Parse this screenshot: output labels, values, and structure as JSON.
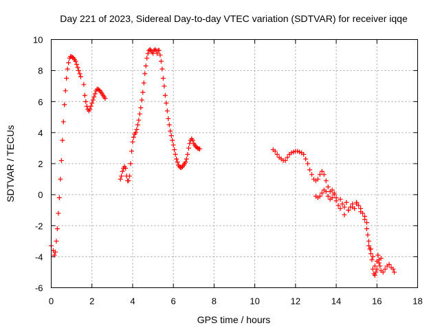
{
  "chart_data": {
    "type": "scatter",
    "title": "Day 221 of 2023, Sidereal Day-to-day VTEC variation (SDTVAR) for receiver iqqe",
    "xlabel": "GPS time / hours",
    "ylabel": "SDTVAR / TECUs",
    "xlim": [
      0,
      18
    ],
    "ylim": [
      -6,
      10
    ],
    "xticks": [
      "0",
      "2",
      "4",
      "6",
      "8",
      "10",
      "12",
      "14",
      "16",
      "18"
    ],
    "yticks": [
      "-6",
      "-4",
      "-2",
      "0",
      "2",
      "4",
      "6",
      "8",
      "10"
    ],
    "grid": true,
    "marker": "plus",
    "color": "#ff0000",
    "series": [
      {
        "name": "SDTVAR",
        "points": [
          [
            0.0,
            -3.3
          ],
          [
            0.1,
            -3.6
          ],
          [
            0.15,
            -3.9
          ],
          [
            0.2,
            -3.7
          ],
          [
            0.25,
            -3.0
          ],
          [
            0.3,
            -2.2
          ],
          [
            0.35,
            -1.2
          ],
          [
            0.4,
            -0.2
          ],
          [
            0.45,
            1.0
          ],
          [
            0.5,
            2.2
          ],
          [
            0.55,
            3.5
          ],
          [
            0.6,
            4.7
          ],
          [
            0.65,
            5.8
          ],
          [
            0.7,
            6.7
          ],
          [
            0.75,
            7.5
          ],
          [
            0.8,
            8.1
          ],
          [
            0.85,
            8.5
          ],
          [
            0.9,
            8.8
          ],
          [
            0.95,
            8.9
          ],
          [
            1.0,
            8.9
          ],
          [
            1.05,
            8.85
          ],
          [
            1.1,
            8.8
          ],
          [
            1.15,
            8.7
          ],
          [
            1.2,
            8.6
          ],
          [
            1.25,
            8.4
          ],
          [
            1.3,
            8.2
          ],
          [
            1.35,
            8.0
          ],
          [
            1.4,
            7.8
          ],
          [
            1.45,
            7.6
          ],
          [
            1.6,
            7.1
          ],
          [
            1.65,
            6.4
          ],
          [
            1.7,
            6.0
          ],
          [
            1.75,
            5.7
          ],
          [
            1.8,
            5.5
          ],
          [
            1.85,
            5.4
          ],
          [
            1.9,
            5.5
          ],
          [
            1.95,
            5.7
          ],
          [
            2.0,
            5.9
          ],
          [
            2.05,
            6.1
          ],
          [
            2.1,
            6.3
          ],
          [
            2.15,
            6.5
          ],
          [
            2.2,
            6.7
          ],
          [
            2.25,
            6.8
          ],
          [
            2.3,
            6.8
          ],
          [
            2.35,
            6.75
          ],
          [
            2.4,
            6.7
          ],
          [
            2.45,
            6.6
          ],
          [
            2.5,
            6.5
          ],
          [
            2.55,
            6.4
          ],
          [
            2.6,
            6.3
          ],
          [
            2.65,
            6.2
          ],
          [
            3.4,
            1.0
          ],
          [
            3.45,
            1.2
          ],
          [
            3.5,
            1.5
          ],
          [
            3.55,
            1.7
          ],
          [
            3.6,
            1.8
          ],
          [
            3.65,
            1.7
          ],
          [
            3.7,
            1.2
          ],
          [
            3.75,
            0.9
          ],
          [
            3.8,
            0.9
          ],
          [
            3.85,
            1.2
          ],
          [
            3.9,
            2.0
          ],
          [
            3.95,
            2.8
          ],
          [
            4.0,
            3.4
          ],
          [
            4.05,
            3.7
          ],
          [
            4.1,
            3.9
          ],
          [
            4.15,
            4.0
          ],
          [
            4.2,
            4.2
          ],
          [
            4.25,
            4.5
          ],
          [
            4.3,
            4.8
          ],
          [
            4.35,
            5.2
          ],
          [
            4.4,
            5.6
          ],
          [
            4.45,
            6.1
          ],
          [
            4.5,
            6.6
          ],
          [
            4.55,
            7.2
          ],
          [
            4.6,
            7.8
          ],
          [
            4.65,
            8.3
          ],
          [
            4.7,
            8.8
          ],
          [
            4.75,
            9.1
          ],
          [
            4.8,
            9.3
          ],
          [
            4.85,
            9.35
          ],
          [
            4.9,
            9.3
          ],
          [
            4.95,
            9.2
          ],
          [
            5.0,
            9.1
          ],
          [
            5.05,
            9.3
          ],
          [
            5.1,
            9.35
          ],
          [
            5.15,
            9.3
          ],
          [
            5.2,
            9.1
          ],
          [
            5.25,
            9.3
          ],
          [
            5.3,
            9.3
          ],
          [
            5.35,
            9.0
          ],
          [
            5.4,
            8.6
          ],
          [
            5.45,
            8.1
          ],
          [
            5.5,
            7.5
          ],
          [
            5.55,
            7.0
          ],
          [
            5.6,
            6.4
          ],
          [
            5.65,
            5.9
          ],
          [
            5.7,
            5.4
          ],
          [
            5.75,
            4.9
          ],
          [
            5.8,
            4.5
          ],
          [
            5.85,
            4.1
          ],
          [
            5.9,
            3.8
          ],
          [
            5.95,
            3.5
          ],
          [
            6.0,
            3.2
          ],
          [
            6.05,
            2.9
          ],
          [
            6.1,
            2.6
          ],
          [
            6.15,
            2.3
          ],
          [
            6.2,
            2.1
          ],
          [
            6.25,
            1.9
          ],
          [
            6.3,
            1.8
          ],
          [
            6.35,
            1.75
          ],
          [
            6.4,
            1.75
          ],
          [
            6.45,
            1.8
          ],
          [
            6.5,
            1.9
          ],
          [
            6.55,
            2.0
          ],
          [
            6.6,
            2.1
          ],
          [
            6.65,
            2.3
          ],
          [
            6.7,
            2.6
          ],
          [
            6.75,
            3.0
          ],
          [
            6.8,
            3.3
          ],
          [
            6.85,
            3.5
          ],
          [
            6.9,
            3.6
          ],
          [
            6.95,
            3.5
          ],
          [
            7.0,
            3.3
          ],
          [
            7.05,
            3.2
          ],
          [
            7.1,
            3.1
          ],
          [
            7.15,
            3.05
          ],
          [
            7.2,
            3.0
          ],
          [
            7.25,
            2.95
          ],
          [
            7.3,
            2.95
          ],
          [
            10.9,
            2.9
          ],
          [
            11.0,
            2.8
          ],
          [
            11.1,
            2.6
          ],
          [
            11.2,
            2.4
          ],
          [
            11.3,
            2.3
          ],
          [
            11.4,
            2.2
          ],
          [
            11.5,
            2.2
          ],
          [
            11.6,
            2.4
          ],
          [
            11.7,
            2.6
          ],
          [
            11.8,
            2.7
          ],
          [
            11.9,
            2.75
          ],
          [
            12.0,
            2.8
          ],
          [
            12.1,
            2.8
          ],
          [
            12.2,
            2.75
          ],
          [
            12.3,
            2.7
          ],
          [
            12.4,
            2.6
          ],
          [
            12.5,
            2.3
          ],
          [
            12.6,
            2.0
          ],
          [
            12.7,
            1.6
          ],
          [
            12.8,
            1.3
          ],
          [
            12.9,
            1.0
          ],
          [
            13.0,
            0.9
          ],
          [
            13.1,
            1.0
          ],
          [
            13.2,
            1.3
          ],
          [
            13.3,
            1.5
          ],
          [
            13.4,
            1.3
          ],
          [
            13.5,
            0.9
          ],
          [
            13.6,
            0.5
          ],
          [
            13.7,
            0.2
          ],
          [
            13.8,
            0.3
          ],
          [
            13.9,
            0.1
          ],
          [
            14.0,
            -0.4
          ],
          [
            14.1,
            -0.7
          ],
          [
            14.2,
            -0.3
          ],
          [
            14.3,
            -0.6
          ],
          [
            14.4,
            -0.8
          ],
          [
            14.5,
            -0.5
          ],
          [
            14.6,
            -1.0
          ],
          [
            14.7,
            -0.8
          ],
          [
            14.8,
            -0.6
          ],
          [
            14.9,
            -0.9
          ],
          [
            15.0,
            -0.5
          ],
          [
            15.1,
            -0.7
          ],
          [
            15.2,
            -0.9
          ],
          [
            15.3,
            -1.2
          ],
          [
            15.4,
            -1.4
          ],
          [
            15.5,
            -1.8
          ],
          [
            15.55,
            -2.6
          ],
          [
            15.6,
            -3.3
          ],
          [
            15.65,
            -3.5
          ],
          [
            15.7,
            -3.8
          ],
          [
            15.75,
            -4.2
          ],
          [
            15.8,
            -4.8
          ],
          [
            15.85,
            -5.1
          ],
          [
            15.9,
            -5.2
          ],
          [
            15.95,
            -5.0
          ],
          [
            16.0,
            -4.3
          ],
          [
            16.05,
            -3.9
          ],
          [
            16.1,
            -4.2
          ],
          [
            16.15,
            -4.6
          ],
          [
            16.2,
            -4.9
          ],
          [
            16.3,
            -5.0
          ],
          [
            16.4,
            -4.8
          ],
          [
            16.5,
            -4.6
          ],
          [
            16.6,
            -4.5
          ],
          [
            16.7,
            -4.7
          ],
          [
            16.8,
            -4.8
          ],
          [
            16.85,
            -5.0
          ],
          [
            13.0,
            -0.1
          ],
          [
            13.1,
            -0.2
          ],
          [
            13.2,
            -0.1
          ],
          [
            13.3,
            0.1
          ],
          [
            13.4,
            0.3
          ],
          [
            13.5,
            0.2
          ],
          [
            13.6,
            -0.1
          ],
          [
            13.7,
            -0.3
          ],
          [
            13.8,
            -0.2
          ],
          [
            13.9,
            0.0
          ],
          [
            14.0,
            -0.2
          ],
          [
            14.2,
            -0.9
          ],
          [
            14.4,
            -1.3
          ],
          [
            14.6,
            -1.0
          ],
          [
            14.8,
            -0.8
          ],
          [
            15.0,
            -0.6
          ],
          [
            15.2,
            -1.1
          ],
          [
            15.4,
            -1.6
          ],
          [
            15.5,
            -2.2
          ],
          [
            15.6,
            -3.0
          ],
          [
            15.7,
            -3.5
          ],
          [
            15.8,
            -4.0
          ],
          [
            15.9,
            -4.6
          ],
          [
            16.0,
            -4.8
          ],
          [
            16.1,
            -4.4
          ],
          [
            16.2,
            -4.1
          ]
        ]
      }
    ]
  }
}
